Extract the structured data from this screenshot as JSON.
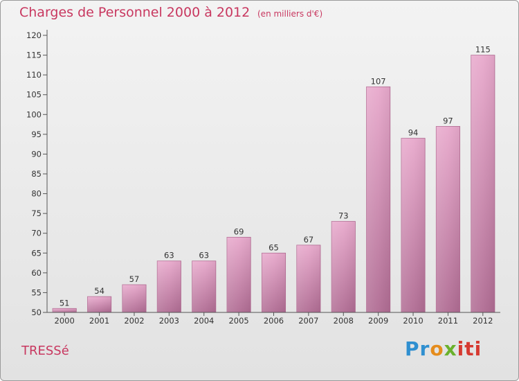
{
  "header": {
    "title": "Charges de Personnel 2000 à 2012",
    "subtitle": "(en milliers d'€)"
  },
  "footer": {
    "commune": "TRESSé",
    "logo_parts": [
      "Pr",
      "o",
      "x",
      "iti"
    ]
  },
  "colors": {
    "bar": "#c9739f",
    "title": "#c8375f"
  },
  "chart_data": {
    "type": "bar",
    "categories": [
      "2000",
      "2001",
      "2002",
      "2003",
      "2004",
      "2005",
      "2006",
      "2007",
      "2008",
      "2009",
      "2010",
      "2011",
      "2012"
    ],
    "values": [
      51,
      54,
      57,
      63,
      63,
      69,
      65,
      67,
      73,
      107,
      94,
      97,
      115
    ],
    "ylim": [
      50,
      120
    ],
    "yticks": [
      50,
      55,
      60,
      65,
      70,
      75,
      80,
      85,
      90,
      95,
      100,
      105,
      110,
      115,
      120
    ],
    "grid": false,
    "data_labels": true
  }
}
